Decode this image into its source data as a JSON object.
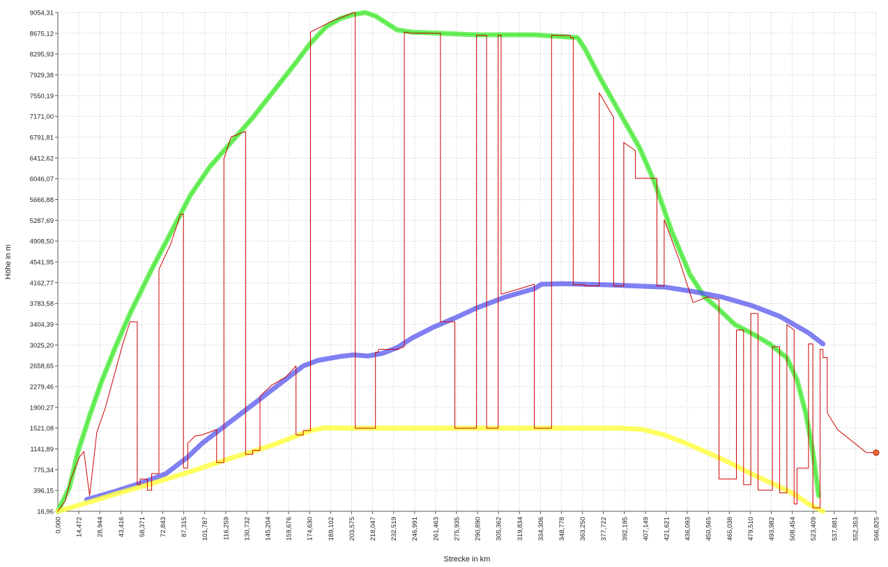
{
  "chart_data": {
    "type": "line",
    "xlabel": "Strecke  in  km",
    "ylabel": "Höhe  in  m",
    "xlim": [
      0,
      566.825
    ],
    "ylim": [
      16.96,
      9054.31
    ],
    "grid": true,
    "x_ticks": [
      "0,000",
      "14,472",
      "28,944",
      "43,416",
      "58,371",
      "72,843",
      "87,315",
      "101,787",
      "116,259",
      "130,732",
      "145,204",
      "159,676",
      "174,630",
      "189,102",
      "203,575",
      "218,047",
      "232,519",
      "246,991",
      "261,463",
      "275,935",
      "290,890",
      "305,362",
      "319,834",
      "334,306",
      "348,778",
      "363,250",
      "377,722",
      "392,195",
      "407,149",
      "421,621",
      "436,093",
      "450,565",
      "465,038",
      "479,510",
      "493,982",
      "508,454",
      "523,409",
      "537,881",
      "552,353",
      "566,825"
    ],
    "y_ticks": [
      "16,96",
      "396,15",
      "775,34",
      "1141,89",
      "1521,08",
      "1900,27",
      "2279,46",
      "2658,65",
      "3025,20",
      "3404,39",
      "3783,58",
      "4162,77",
      "4541,95",
      "4908,50",
      "5287,69",
      "5666,88",
      "6046,07",
      "6412,62",
      "6791,81",
      "7171,00",
      "7550,19",
      "7929,38",
      "8295,93",
      "8675,12",
      "9054,31"
    ],
    "series": [
      {
        "color": "#55ee44",
        "x": [
          0,
          8,
          14,
          22,
          30,
          40,
          50,
          65,
          80,
          92,
          105,
          120,
          135,
          150,
          165,
          175,
          186,
          196,
          205,
          213,
          220,
          235,
          245,
          265,
          290,
          310,
          330,
          360,
          365,
          375,
          390,
          403,
          413,
          425,
          438,
          448,
          457,
          469,
          480,
          493,
          505,
          512,
          518,
          523,
          527
        ],
        "y": [
          16.96,
          450,
          1100,
          1750,
          2350,
          3000,
          3600,
          4400,
          5150,
          5750,
          6250,
          6700,
          7150,
          7650,
          8150,
          8500,
          8800,
          8950,
          9020,
          9054,
          8990,
          8740,
          8700,
          8680,
          8650,
          8650,
          8650,
          8600,
          8400,
          7900,
          7200,
          6600,
          6000,
          5100,
          4300,
          3900,
          3700,
          3400,
          3250,
          3050,
          2800,
          2400,
          1800,
          1100,
          300
        ]
      },
      {
        "color": "#5555ee",
        "x": [
          20,
          40,
          60,
          75,
          90,
          100,
          115,
          130,
          145,
          160,
          170,
          180,
          195,
          205,
          215,
          225,
          235,
          245,
          260,
          275,
          290,
          310,
          330,
          335,
          350,
          365,
          380,
          400,
          420,
          440,
          460,
          480,
          500,
          520,
          530
        ],
        "y": [
          230,
          380,
          550,
          700,
          1000,
          1250,
          1550,
          1850,
          2150,
          2450,
          2650,
          2750,
          2820,
          2850,
          2830,
          2880,
          2980,
          3150,
          3350,
          3520,
          3700,
          3900,
          4050,
          4130,
          4140,
          4130,
          4120,
          4100,
          4080,
          4000,
          3900,
          3750,
          3550,
          3250,
          3050
        ]
      },
      {
        "color": "#ffff44",
        "x": [
          0,
          15,
          30,
          45,
          60,
          75,
          90,
          105,
          120,
          135,
          150,
          165,
          175,
          185,
          200,
          220,
          250,
          280,
          310,
          340,
          370,
          390,
          405,
          420,
          435,
          450,
          465,
          480,
          495,
          510,
          520,
          530
        ],
        "y": [
          16.96,
          130,
          250,
          370,
          480,
          600,
          720,
          850,
          980,
          1100,
          1230,
          1380,
          1480,
          1530,
          1521,
          1521,
          1521,
          1521,
          1521,
          1521,
          1521,
          1521,
          1500,
          1400,
          1250,
          1080,
          900,
          700,
          520,
          330,
          150,
          16.96
        ]
      },
      {
        "color": "#cc0000",
        "x": [
          0,
          5,
          5,
          9,
          9,
          15,
          15,
          18,
          18,
          22,
          22,
          27,
          27,
          33,
          45,
          50,
          55,
          55,
          57,
          57,
          62,
          62,
          65,
          65,
          70,
          70,
          78,
          85,
          87,
          87,
          90,
          90,
          95,
          100,
          105,
          110,
          110,
          115,
          115,
          120,
          130,
          130,
          135,
          135,
          140,
          140,
          148,
          158,
          165,
          165,
          170,
          170,
          175,
          175,
          190,
          205,
          206,
          206,
          220,
          220,
          222,
          222,
          235,
          240,
          240,
          245,
          265,
          265,
          275,
          275,
          290,
          290,
          297,
          297,
          305,
          305,
          307,
          307,
          320,
          330,
          330,
          342,
          342,
          355,
          355,
          357,
          357,
          365,
          365,
          375,
          375,
          385,
          385,
          392,
          392,
          400,
          400,
          415,
          415,
          420,
          420,
          430,
          440,
          450,
          450,
          458,
          458,
          470,
          470,
          475,
          475,
          480,
          480,
          485,
          485,
          495,
          495,
          500,
          500,
          505,
          505,
          510,
          510,
          512,
          512,
          520,
          520,
          523,
          523,
          528,
          528,
          530,
          530,
          533,
          533,
          540,
          560,
          566.825
        ],
        "y": [
          16.96,
          200,
          200,
          600,
          600,
          1000,
          1000,
          1100,
          1100,
          300,
          300,
          1450,
          1450,
          1900,
          3050,
          3450,
          3450,
          500,
          500,
          600,
          600,
          400,
          400,
          700,
          700,
          4400,
          4850,
          5400,
          5400,
          800,
          800,
          1250,
          1380,
          1400,
          1450,
          1500,
          900,
          900,
          6400,
          6800,
          6900,
          1050,
          1050,
          1120,
          1120,
          2100,
          2300,
          2450,
          2650,
          1400,
          1400,
          1480,
          1480,
          8700,
          8900,
          9054,
          9054,
          1521,
          1521,
          2900,
          2900,
          2950,
          2950,
          3000,
          8700,
          8680,
          8680,
          3450,
          3450,
          1521,
          1521,
          8640,
          8640,
          1521,
          1521,
          8640,
          8640,
          3950,
          4050,
          4130,
          1521,
          1521,
          8640,
          8640,
          8600,
          8600,
          4120,
          4120,
          4100,
          4100,
          7600,
          7150,
          4100,
          4100,
          6700,
          6550,
          6050,
          6050,
          4100,
          4100,
          5300,
          4600,
          3800,
          3900,
          3900,
          3850,
          600,
          600,
          3300,
          3300,
          500,
          500,
          3600,
          3600,
          400,
          400,
          3000,
          3000,
          350,
          350,
          3400,
          3300,
          150,
          150,
          800,
          800,
          3050,
          3050,
          80,
          80,
          2950,
          2950,
          2800,
          2800,
          1800,
          1500,
          1080,
          1080
        ]
      }
    ]
  }
}
